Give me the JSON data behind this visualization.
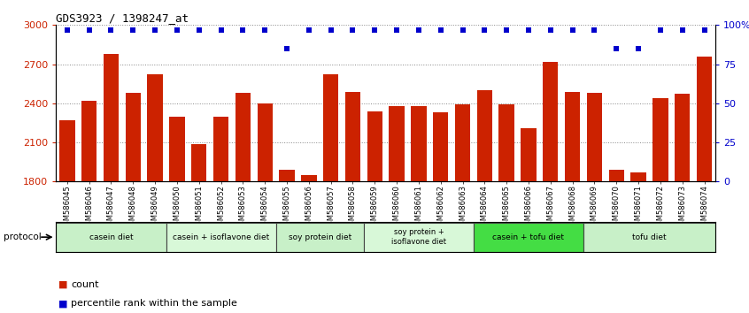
{
  "title": "GDS3923 / 1398247_at",
  "samples": [
    "GSM586045",
    "GSM586046",
    "GSM586047",
    "GSM586048",
    "GSM586049",
    "GSM586050",
    "GSM586051",
    "GSM586052",
    "GSM586053",
    "GSM586054",
    "GSM586055",
    "GSM586056",
    "GSM586057",
    "GSM586058",
    "GSM586059",
    "GSM586060",
    "GSM586061",
    "GSM586062",
    "GSM586063",
    "GSM586064",
    "GSM586065",
    "GSM586066",
    "GSM586067",
    "GSM586068",
    "GSM586069",
    "GSM586070",
    "GSM586071",
    "GSM586072",
    "GSM586073",
    "GSM586074"
  ],
  "counts": [
    2270,
    2420,
    2780,
    2480,
    2620,
    2300,
    2090,
    2300,
    2480,
    2400,
    1890,
    1850,
    2620,
    2490,
    2340,
    2380,
    2380,
    2330,
    2390,
    2500,
    2390,
    2210,
    2720,
    2490,
    2480,
    1890,
    1870,
    2440,
    2470,
    2760
  ],
  "percentile_ranks": [
    97,
    97,
    97,
    97,
    97,
    97,
    97,
    97,
    97,
    97,
    85,
    97,
    97,
    97,
    97,
    97,
    97,
    97,
    97,
    97,
    97,
    97,
    97,
    97,
    97,
    85,
    85,
    97,
    97,
    97
  ],
  "groups": [
    {
      "label": "casein diet",
      "start": 0,
      "end": 4,
      "color": "#c8f0c8"
    },
    {
      "label": "casein + isoflavone diet",
      "start": 5,
      "end": 9,
      "color": "#d8f8d8"
    },
    {
      "label": "soy protein diet",
      "start": 10,
      "end": 13,
      "color": "#c8f0c8"
    },
    {
      "label": "soy protein +\nisoflavone diet",
      "start": 14,
      "end": 18,
      "color": "#d8f8d8"
    },
    {
      "label": "casein + tofu diet",
      "start": 19,
      "end": 23,
      "color": "#44dd44"
    },
    {
      "label": "tofu diet",
      "start": 24,
      "end": 29,
      "color": "#c8f0c8"
    }
  ],
  "bar_color": "#cc2200",
  "dot_color": "#0000cc",
  "ylim_left": [
    1800,
    3000
  ],
  "ylim_right": [
    0,
    100
  ],
  "yticks_left": [
    1800,
    2100,
    2400,
    2700,
    3000
  ],
  "yticks_right": [
    0,
    25,
    50,
    75,
    100
  ],
  "bg_color": "#ffffff",
  "plot_bg_color": "#ffffff",
  "grid_color": "#888888",
  "protocol_label": "protocol"
}
